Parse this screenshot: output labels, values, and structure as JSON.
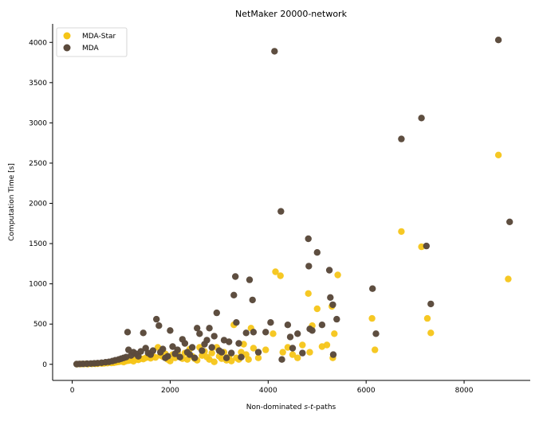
{
  "chart_data": {
    "type": "scatter",
    "title": "NetMaker 20000-network",
    "xlabel_parts": [
      "Non-dominated ",
      "s",
      "-",
      "t",
      "-paths"
    ],
    "ylabel": "Computation Time [s]",
    "xlim": [
      -400,
      9350
    ],
    "ylim": [
      -200,
      4230
    ],
    "xticks": [
      0,
      2000,
      4000,
      6000,
      8000
    ],
    "yticks": [
      0,
      500,
      1000,
      1500,
      2000,
      2500,
      3000,
      3500,
      4000
    ],
    "legend_position": "upper-left",
    "grid": false,
    "series": [
      {
        "name": "MDA-Star",
        "color": "#f5c518",
        "points": [
          [
            100,
            2
          ],
          [
            180,
            3
          ],
          [
            250,
            4
          ],
          [
            320,
            3
          ],
          [
            400,
            5
          ],
          [
            470,
            6
          ],
          [
            520,
            8
          ],
          [
            600,
            10
          ],
          [
            650,
            12
          ],
          [
            720,
            15
          ],
          [
            800,
            18
          ],
          [
            850,
            20
          ],
          [
            900,
            25
          ],
          [
            950,
            30
          ],
          [
            1000,
            35
          ],
          [
            1050,
            28
          ],
          [
            1100,
            40
          ],
          [
            1150,
            45
          ],
          [
            1200,
            50
          ],
          [
            1250,
            38
          ],
          [
            1300,
            60
          ],
          [
            1350,
            55
          ],
          [
            1400,
            70
          ],
          [
            1450,
            65
          ],
          [
            1500,
            80
          ],
          [
            1550,
            90
          ],
          [
            1600,
            75
          ],
          [
            1650,
            100
          ],
          [
            1700,
            85
          ],
          [
            1750,
            210
          ],
          [
            1800,
            110
          ],
          [
            1850,
            95
          ],
          [
            1900,
            130
          ],
          [
            1950,
            60
          ],
          [
            2000,
            40
          ],
          [
            2050,
            120
          ],
          [
            2100,
            80
          ],
          [
            2150,
            150
          ],
          [
            2200,
            90
          ],
          [
            2250,
            70
          ],
          [
            2300,
            140
          ],
          [
            2350,
            60
          ],
          [
            2400,
            190
          ],
          [
            2450,
            100
          ],
          [
            2500,
            70
          ],
          [
            2550,
            50
          ],
          [
            2600,
            210
          ],
          [
            2650,
            110
          ],
          [
            2700,
            160
          ],
          [
            2750,
            90
          ],
          [
            2800,
            60
          ],
          [
            2850,
            140
          ],
          [
            2900,
            30
          ],
          [
            2950,
            210
          ],
          [
            3000,
            100
          ],
          [
            3050,
            70
          ],
          [
            3100,
            150
          ],
          [
            3150,
            50
          ],
          [
            3200,
            90
          ],
          [
            3250,
            40
          ],
          [
            3300,
            490
          ],
          [
            3350,
            80
          ],
          [
            3400,
            60
          ],
          [
            3450,
            150
          ],
          [
            3500,
            250
          ],
          [
            3550,
            120
          ],
          [
            3600,
            60
          ],
          [
            3650,
            450
          ],
          [
            3700,
            200
          ],
          [
            3800,
            80
          ],
          [
            3950,
            180
          ],
          [
            4100,
            380
          ],
          [
            4150,
            1150
          ],
          [
            4250,
            1100
          ],
          [
            4300,
            150
          ],
          [
            4400,
            210
          ],
          [
            4500,
            120
          ],
          [
            4600,
            80
          ],
          [
            4700,
            240
          ],
          [
            4820,
            880
          ],
          [
            4850,
            150
          ],
          [
            4900,
            480
          ],
          [
            5000,
            690
          ],
          [
            5100,
            220
          ],
          [
            5200,
            240
          ],
          [
            5300,
            720
          ],
          [
            5320,
            80
          ],
          [
            5350,
            380
          ],
          [
            5420,
            1110
          ],
          [
            6120,
            570
          ],
          [
            6180,
            180
          ],
          [
            6720,
            1650
          ],
          [
            7130,
            1460
          ],
          [
            7250,
            570
          ],
          [
            7320,
            390
          ],
          [
            8700,
            2600
          ],
          [
            8900,
            1060
          ]
        ]
      },
      {
        "name": "MDA",
        "color": "#5b4a3c",
        "points": [
          [
            90,
            3
          ],
          [
            150,
            5
          ],
          [
            220,
            6
          ],
          [
            300,
            8
          ],
          [
            380,
            10
          ],
          [
            450,
            12
          ],
          [
            520,
            15
          ],
          [
            600,
            20
          ],
          [
            680,
            25
          ],
          [
            750,
            30
          ],
          [
            820,
            40
          ],
          [
            880,
            50
          ],
          [
            950,
            60
          ],
          [
            1000,
            70
          ],
          [
            1050,
            80
          ],
          [
            1100,
            90
          ],
          [
            1130,
            400
          ],
          [
            1150,
            180
          ],
          [
            1200,
            110
          ],
          [
            1250,
            150
          ],
          [
            1300,
            130
          ],
          [
            1350,
            100
          ],
          [
            1400,
            160
          ],
          [
            1450,
            390
          ],
          [
            1500,
            200
          ],
          [
            1550,
            140
          ],
          [
            1600,
            120
          ],
          [
            1650,
            170
          ],
          [
            1720,
            560
          ],
          [
            1770,
            480
          ],
          [
            1800,
            150
          ],
          [
            1850,
            190
          ],
          [
            1900,
            80
          ],
          [
            1950,
            100
          ],
          [
            2000,
            420
          ],
          [
            2050,
            220
          ],
          [
            2100,
            130
          ],
          [
            2150,
            180
          ],
          [
            2200,
            90
          ],
          [
            2250,
            310
          ],
          [
            2300,
            260
          ],
          [
            2350,
            150
          ],
          [
            2400,
            120
          ],
          [
            2450,
            210
          ],
          [
            2500,
            80
          ],
          [
            2550,
            450
          ],
          [
            2600,
            380
          ],
          [
            2650,
            170
          ],
          [
            2700,
            250
          ],
          [
            2750,
            300
          ],
          [
            2800,
            450
          ],
          [
            2850,
            210
          ],
          [
            2900,
            350
          ],
          [
            2950,
            640
          ],
          [
            3000,
            170
          ],
          [
            3050,
            150
          ],
          [
            3100,
            300
          ],
          [
            3150,
            80
          ],
          [
            3200,
            280
          ],
          [
            3250,
            140
          ],
          [
            3300,
            860
          ],
          [
            3330,
            1090
          ],
          [
            3350,
            520
          ],
          [
            3400,
            260
          ],
          [
            3450,
            90
          ],
          [
            3550,
            390
          ],
          [
            3620,
            1050
          ],
          [
            3680,
            800
          ],
          [
            3700,
            400
          ],
          [
            3800,
            150
          ],
          [
            3950,
            400
          ],
          [
            4050,
            520
          ],
          [
            4130,
            3890
          ],
          [
            4260,
            1900
          ],
          [
            4280,
            60
          ],
          [
            4400,
            490
          ],
          [
            4450,
            340
          ],
          [
            4500,
            200
          ],
          [
            4600,
            380
          ],
          [
            4700,
            140
          ],
          [
            4820,
            1560
          ],
          [
            4830,
            1220
          ],
          [
            4850,
            440
          ],
          [
            4900,
            420
          ],
          [
            5000,
            1390
          ],
          [
            5100,
            490
          ],
          [
            5250,
            1170
          ],
          [
            5270,
            830
          ],
          [
            5320,
            740
          ],
          [
            5330,
            120
          ],
          [
            5400,
            560
          ],
          [
            6130,
            940
          ],
          [
            6200,
            380
          ],
          [
            6720,
            2800
          ],
          [
            7130,
            3060
          ],
          [
            7230,
            1470
          ],
          [
            7320,
            750
          ],
          [
            8700,
            4030
          ],
          [
            8930,
            1770
          ]
        ]
      }
    ]
  }
}
